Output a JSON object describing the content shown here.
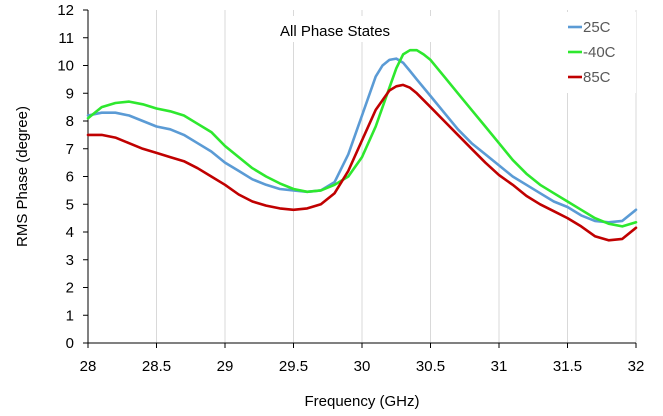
{
  "chart_data": {
    "type": "line",
    "title": "",
    "annotation": "All Phase States",
    "xlabel": "Frequency (GHz)",
    "ylabel": "RMS Phase (degree)",
    "xlim": [
      28,
      32
    ],
    "ylim": [
      0,
      12
    ],
    "x_ticks": [
      "28",
      "28.5",
      "29",
      "29.5",
      "30",
      "30.5",
      "31",
      "31.5",
      "32"
    ],
    "y_ticks": [
      "0",
      "1",
      "2",
      "3",
      "4",
      "5",
      "6",
      "7",
      "8",
      "9",
      "10",
      "11",
      "12"
    ],
    "grid": "vertical",
    "legend_position": "right",
    "series": [
      {
        "name": "25C",
        "color": "#5B9BD5",
        "x": [
          28.0,
          28.1,
          28.2,
          28.3,
          28.4,
          28.5,
          28.6,
          28.7,
          28.8,
          28.9,
          29.0,
          29.1,
          29.2,
          29.3,
          29.4,
          29.5,
          29.6,
          29.7,
          29.8,
          29.9,
          30.0,
          30.1,
          30.15,
          30.2,
          30.25,
          30.3,
          30.35,
          30.4,
          30.5,
          30.6,
          30.7,
          30.8,
          30.9,
          31.0,
          31.1,
          31.2,
          31.3,
          31.4,
          31.5,
          31.6,
          31.7,
          31.8,
          31.9,
          32.0
        ],
        "values": [
          8.2,
          8.3,
          8.3,
          8.2,
          8.0,
          7.8,
          7.7,
          7.5,
          7.2,
          6.9,
          6.5,
          6.2,
          5.9,
          5.7,
          5.55,
          5.5,
          5.45,
          5.5,
          5.8,
          6.8,
          8.2,
          9.6,
          10.0,
          10.2,
          10.25,
          10.1,
          9.8,
          9.5,
          8.9,
          8.3,
          7.7,
          7.2,
          6.8,
          6.4,
          6.0,
          5.7,
          5.4,
          5.1,
          4.9,
          4.6,
          4.4,
          4.35,
          4.4,
          4.8
        ]
      },
      {
        "name": "-40C",
        "color": "#2EE82E",
        "x": [
          28.0,
          28.1,
          28.2,
          28.3,
          28.4,
          28.5,
          28.6,
          28.7,
          28.8,
          28.9,
          29.0,
          29.1,
          29.2,
          29.3,
          29.4,
          29.5,
          29.6,
          29.7,
          29.8,
          29.9,
          30.0,
          30.1,
          30.2,
          30.25,
          30.3,
          30.35,
          30.4,
          30.45,
          30.5,
          30.6,
          30.7,
          30.8,
          30.9,
          31.0,
          31.1,
          31.2,
          31.3,
          31.4,
          31.5,
          31.6,
          31.7,
          31.8,
          31.9,
          32.0
        ],
        "values": [
          8.1,
          8.5,
          8.65,
          8.7,
          8.6,
          8.45,
          8.35,
          8.2,
          7.9,
          7.6,
          7.1,
          6.7,
          6.3,
          6.0,
          5.75,
          5.55,
          5.45,
          5.5,
          5.7,
          6.0,
          6.7,
          7.8,
          9.2,
          9.9,
          10.4,
          10.55,
          10.55,
          10.4,
          10.2,
          9.6,
          9.0,
          8.4,
          7.8,
          7.2,
          6.6,
          6.1,
          5.7,
          5.4,
          5.1,
          4.8,
          4.5,
          4.3,
          4.2,
          4.35
        ]
      },
      {
        "name": "85C",
        "color": "#C00000",
        "x": [
          28.0,
          28.1,
          28.2,
          28.3,
          28.4,
          28.5,
          28.6,
          28.7,
          28.8,
          28.9,
          29.0,
          29.1,
          29.2,
          29.3,
          29.4,
          29.5,
          29.6,
          29.7,
          29.8,
          29.9,
          30.0,
          30.1,
          30.2,
          30.25,
          30.3,
          30.35,
          30.4,
          30.5,
          30.6,
          30.7,
          30.8,
          30.9,
          31.0,
          31.1,
          31.2,
          31.3,
          31.4,
          31.5,
          31.6,
          31.7,
          31.8,
          31.9,
          32.0
        ],
        "values": [
          7.5,
          7.5,
          7.4,
          7.2,
          7.0,
          6.85,
          6.7,
          6.55,
          6.3,
          6.0,
          5.7,
          5.35,
          5.1,
          4.95,
          4.85,
          4.8,
          4.85,
          5.0,
          5.4,
          6.2,
          7.3,
          8.4,
          9.1,
          9.25,
          9.3,
          9.2,
          9.0,
          8.5,
          8.0,
          7.5,
          7.0,
          6.5,
          6.05,
          5.7,
          5.3,
          5.0,
          4.75,
          4.5,
          4.2,
          3.85,
          3.7,
          3.75,
          4.15
        ]
      }
    ]
  }
}
